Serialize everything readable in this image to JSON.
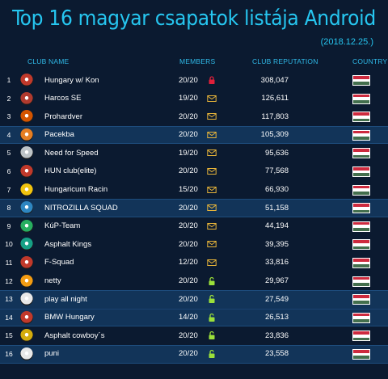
{
  "title": "Top 16 magyar csapatok listája Android",
  "date": "(2018.12.25.)",
  "headers": {
    "club_name": "CLUB NAME",
    "members": "MEMBERS",
    "club_reputation": "CLUB REPUTATION",
    "country": "COUNTRY"
  },
  "colors": {
    "lock_red": "#e0203a",
    "mail_gold": "#e8b53a",
    "unlock_green": "#9be03a",
    "flag_red": "#cd2a3e",
    "flag_white": "#ffffff",
    "flag_green": "#436f4d"
  },
  "clubs": [
    {
      "rank": "1",
      "name": "Hungary w/ Kon",
      "members": "20/20",
      "access": "lock-icon",
      "reputation": "308,047",
      "logo_color": "#c0392b",
      "highlight": false
    },
    {
      "rank": "2",
      "name": "Harcos SE",
      "members": "19/20",
      "access": "mail-icon",
      "reputation": "126,611",
      "logo_color": "#b03a2e",
      "highlight": false
    },
    {
      "rank": "3",
      "name": "Prohardver",
      "members": "20/20",
      "access": "mail-icon",
      "reputation": "117,803",
      "logo_color": "#d35400",
      "highlight": false
    },
    {
      "rank": "4",
      "name": "Pacekba",
      "members": "20/20",
      "access": "mail-icon",
      "reputation": "105,309",
      "logo_color": "#e67e22",
      "highlight": true
    },
    {
      "rank": "5",
      "name": "Need for Speed",
      "members": "19/20",
      "access": "mail-icon",
      "reputation": "95,636",
      "logo_color": "#bdc3c7",
      "highlight": false
    },
    {
      "rank": "6",
      "name": "HUN club(elite)",
      "members": "20/20",
      "access": "mail-icon",
      "reputation": "77,568",
      "logo_color": "#c0392b",
      "highlight": false
    },
    {
      "rank": "7",
      "name": "Hungaricum Racin",
      "members": "15/20",
      "access": "mail-icon",
      "reputation": "66,930",
      "logo_color": "#f1c40f",
      "highlight": false
    },
    {
      "rank": "8",
      "name": "NITROZILLA SQUAD",
      "members": "20/20",
      "access": "mail-icon",
      "reputation": "51,158",
      "logo_color": "#2e86c1",
      "highlight": true
    },
    {
      "rank": "9",
      "name": "KúP-Team",
      "members": "20/20",
      "access": "mail-icon",
      "reputation": "44,194",
      "logo_color": "#27ae60",
      "highlight": false
    },
    {
      "rank": "10",
      "name": "Asphalt Kings",
      "members": "20/20",
      "access": "mail-icon",
      "reputation": "39,395",
      "logo_color": "#16a085",
      "highlight": false
    },
    {
      "rank": "11",
      "name": "F-Squad",
      "members": "12/20",
      "access": "mail-icon",
      "reputation": "33,816",
      "logo_color": "#c0392b",
      "highlight": false
    },
    {
      "rank": "12",
      "name": "netty",
      "members": "20/20",
      "access": "unlock-icon",
      "reputation": "29,967",
      "logo_color": "#f39c12",
      "highlight": false
    },
    {
      "rank": "13",
      "name": "play all  night",
      "members": "20/20",
      "access": "unlock-icon",
      "reputation": "27,549",
      "logo_color": "#e8e8e8",
      "highlight": true
    },
    {
      "rank": "14",
      "name": "BMW Hungary",
      "members": "14/20",
      "access": "unlock-icon",
      "reputation": "26,513",
      "logo_color": "#c0392b",
      "highlight": true
    },
    {
      "rank": "15",
      "name": "Asphalt cowboy´s",
      "members": "20/20",
      "access": "unlock-icon",
      "reputation": "23,836",
      "logo_color": "#d4ac0d",
      "highlight": false
    },
    {
      "rank": "16",
      "name": "puni",
      "members": "20/20",
      "access": "unlock-icon",
      "reputation": "23,558",
      "logo_color": "#e8e8e8",
      "highlight": true
    }
  ]
}
